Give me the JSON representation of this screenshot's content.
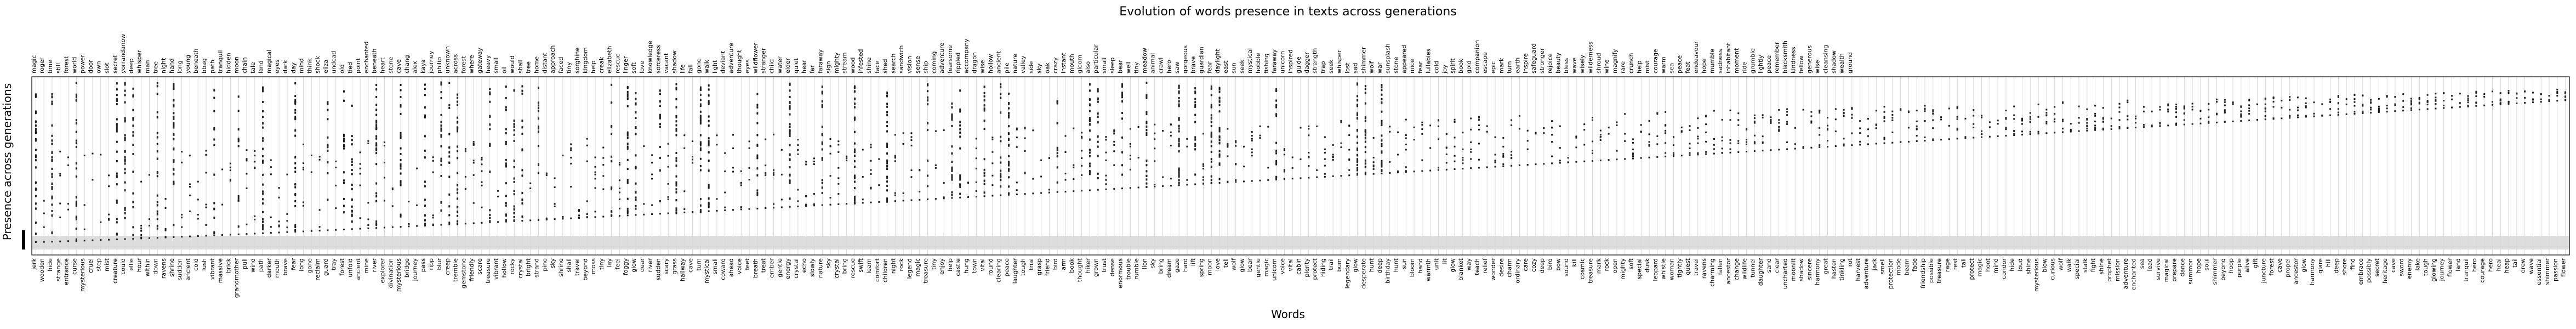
{
  "chart_data": {
    "type": "scatter",
    "title": "Evolution of words presence in texts across generations",
    "xlabel": "Words",
    "ylabel": "Presence across generations",
    "grid": "vertical",
    "ylim": [
      0,
      1
    ],
    "top_words": [
      "magic",
      "roger",
      "time",
      "still",
      "forest",
      "world",
      "power",
      "door",
      "own",
      "slot",
      "secret",
      "yorrandanow",
      "deep",
      "whisper",
      "man",
      "tree",
      "night",
      "hand",
      "long",
      "young",
      "beneath",
      "bbag",
      "path",
      "tranquil",
      "hidden",
      "moon",
      "chain",
      "tale",
      "land",
      "magical",
      "eyes",
      "dark",
      "day",
      "mind",
      "think",
      "shock",
      "eliza",
      "undead",
      "old",
      "tied",
      "point",
      "enchanted",
      "beneath",
      "heart",
      "stone",
      "cave",
      "chang",
      "alex",
      "kaya",
      "journey",
      "philip",
      "unknown",
      "across",
      "forest",
      "where",
      "gateway",
      "heavy",
      "small",
      "oil",
      "would",
      "shall",
      "tree",
      "home",
      "distant",
      "approach",
      "faced",
      "tiny",
      "sorghine",
      "kingdom",
      "help",
      "creak",
      "elizabeth",
      "rescue",
      "linger",
      "soft",
      "love",
      "knowledge",
      "sorceress",
      "vacant",
      "shadow",
      "life",
      "fall",
      "gone",
      "walk",
      "light",
      "deviant",
      "adventure",
      "thought",
      "eyes",
      "wildflower",
      "stranger",
      "child",
      "water",
      "elder",
      "quiet",
      "hear",
      "far",
      "faraway",
      "sign",
      "mighty",
      "stream",
      "wood",
      "infested",
      "shine",
      "face",
      "shed",
      "search",
      "sandwich",
      "vision",
      "sense",
      "ship",
      "coming",
      "adventure",
      "fearsome",
      "rippled",
      "accompany",
      "dragon",
      "wise",
      "hollow",
      "ancient",
      "pile",
      "nature",
      "valley",
      "side",
      "sky",
      "oak",
      "crazy",
      "instant",
      "mouth",
      "gloom",
      "also",
      "particular",
      "small",
      "sleep",
      "bear",
      "well",
      "tiny",
      "meadow",
      "animal",
      "crawl",
      "hero",
      "saw",
      "gorgeous",
      "brave",
      "guardian",
      "fear",
      "daylight",
      "east",
      "sun",
      "seek",
      "mystical",
      "hobble",
      "fishing",
      "faraway",
      "unicorn",
      "inspired",
      "guide",
      "dagger",
      "strength",
      "trap",
      "seek",
      "whisper",
      "lost",
      "sad",
      "shimmer",
      "wolf",
      "war",
      "sunsplash",
      "stone",
      "appeared",
      "mice",
      "fear",
      "lullabies",
      "cold",
      "joy",
      "spirit",
      "book",
      "gold",
      "companion",
      "escape",
      "epic",
      "mark",
      "turn",
      "earth",
      "inspire",
      "safeguard",
      "stronger",
      "rejoice",
      "beauty",
      "bless",
      "wave",
      "wisely",
      "wilderness",
      "shroud",
      "wine",
      "magnify",
      "rare",
      "crunch",
      "help",
      "mist",
      "courage",
      "warm",
      "sea",
      "peace",
      "feat",
      "endeavour",
      "hope",
      "mumble",
      "sadness",
      "inhabitant",
      "moment",
      "ride",
      "grumble",
      "lightly",
      "peace",
      "remember",
      "blacksmith",
      "kindness",
      "fellow",
      "generous",
      "wise",
      "cleansing",
      "shadow",
      "wealth",
      "ground"
    ],
    "bottom_words": [
      "jerk",
      "wooden",
      "hide",
      "strange",
      "entrance",
      "curse",
      "mysterious",
      "cruel",
      "step",
      "mist",
      "creature",
      "could",
      "ellie",
      "hour",
      "within",
      "down",
      "ravens",
      "shrine",
      "sudden",
      "ancient",
      "cold",
      "lush",
      "vibrant",
      "massive",
      "brick",
      "grandmother",
      "pull",
      "wind",
      "path",
      "darker",
      "mouth",
      "brave",
      "fear",
      "long",
      "gone",
      "reclaim",
      "guard",
      "tray",
      "forest",
      "unfold",
      "ancient",
      "mine",
      "river",
      "explorer",
      "divination",
      "mysterious",
      "bridge",
      "journey",
      "pass",
      "ripp",
      "blur",
      "creep",
      "tremble",
      "gemstone",
      "friendly",
      "scare",
      "treasure",
      "vibrant",
      "hollow",
      "rocky",
      "crystal",
      "bright",
      "strand",
      "pine",
      "sky",
      "shrine",
      "shall",
      "travel",
      "beyond",
      "moss",
      "tiny",
      "lay",
      "feel",
      "foggy",
      "glow",
      "dear",
      "river",
      "sudden",
      "scary",
      "grass",
      "hallway",
      "cave",
      "turn",
      "mystical",
      "small",
      "coward",
      "ahead",
      "voice",
      "feet",
      "breath",
      "treat",
      "ember",
      "gentle",
      "energy",
      "crystal",
      "echo",
      "slowly",
      "nature",
      "sky",
      "crystal",
      "bring",
      "rescue",
      "swift",
      "learn",
      "comfort",
      "children",
      "night",
      "rock",
      "legend",
      "magic",
      "treasure",
      "tiny",
      "enjoy",
      "help",
      "castle",
      "hung",
      "town",
      "vital",
      "round",
      "clearing",
      "peace",
      "laughter",
      "tough",
      "trial",
      "grasp",
      "friend",
      "bird",
      "arm",
      "book",
      "thought",
      "hiker",
      "grown",
      "trust",
      "dense",
      "enormous",
      "trouble",
      "rumble",
      "lion",
      "sky",
      "bring",
      "dream",
      "gaze",
      "hard",
      "lift",
      "spring",
      "moon",
      "love",
      "tell",
      "wolf",
      "glow",
      "bear",
      "gentle",
      "magic",
      "unicorn",
      "voice",
      "vital",
      "cabin",
      "plenty",
      "protect",
      "hiding",
      "trail",
      "bum",
      "legendary",
      "glow",
      "desperate",
      "hunt",
      "deep",
      "birthday",
      "hunt",
      "sun",
      "bloom",
      "hand",
      "warmth",
      "unit",
      "lit",
      "glow",
      "blanket",
      "way",
      "teach",
      "relief",
      "wonder",
      "desire",
      "charm",
      "ordinary",
      "care",
      "cozy",
      "deep",
      "bird",
      "bow",
      "sound",
      "kill",
      "cosmic",
      "treasure",
      "mark",
      "rock",
      "open",
      "mighty",
      "soft",
      "special",
      "dusk",
      "leopard",
      "whistle",
      "woman",
      "tightly",
      "quest",
      "travel",
      "ravens",
      "charming",
      "fallen",
      "ancestor",
      "change",
      "wildlife",
      "tunnel",
      "daughter",
      "sand",
      "clear",
      "uncharted",
      "moonlit",
      "shadow",
      "sincere",
      "harmony",
      "great",
      "hasten",
      "tinkling",
      "rot",
      "harvest",
      "adventure",
      "jack",
      "smell",
      "protection",
      "mode",
      "beam",
      "fade",
      "friendship",
      "possible",
      "treasure",
      "rage",
      "rest",
      "tail",
      "protect",
      "magic",
      "hoot",
      "mind",
      "condor",
      "hide",
      "loud",
      "shine",
      "mysterious",
      "blow",
      "curious",
      "wolf",
      "walk",
      "special",
      "stalk",
      "fight",
      "shine",
      "prophet",
      "mission",
      "adventure",
      "enchanted",
      "sea",
      "lead",
      "survive",
      "magical",
      "prepare",
      "dance",
      "summon",
      "hope",
      "soul",
      "shimmer",
      "beyond",
      "hoop",
      "purple",
      "alive",
      "gift",
      "juncture",
      "forest",
      "cave",
      "propel",
      "ancestor",
      "glow",
      "harmony",
      "glare",
      "hill",
      "deep",
      "shore",
      "find",
      "embrace",
      "possibly",
      "secret",
      "heritage",
      "cave",
      "sword",
      "enemy",
      "lake",
      "tough",
      "glowing",
      "journey",
      "flower",
      "land",
      "tranquil",
      "hero",
      "courage",
      "hero",
      "heal",
      "heap",
      "tail",
      "drew",
      "wave",
      "essential",
      "shimmer",
      "passion",
      "flower"
    ],
    "series": [],
    "notes": ""
  }
}
